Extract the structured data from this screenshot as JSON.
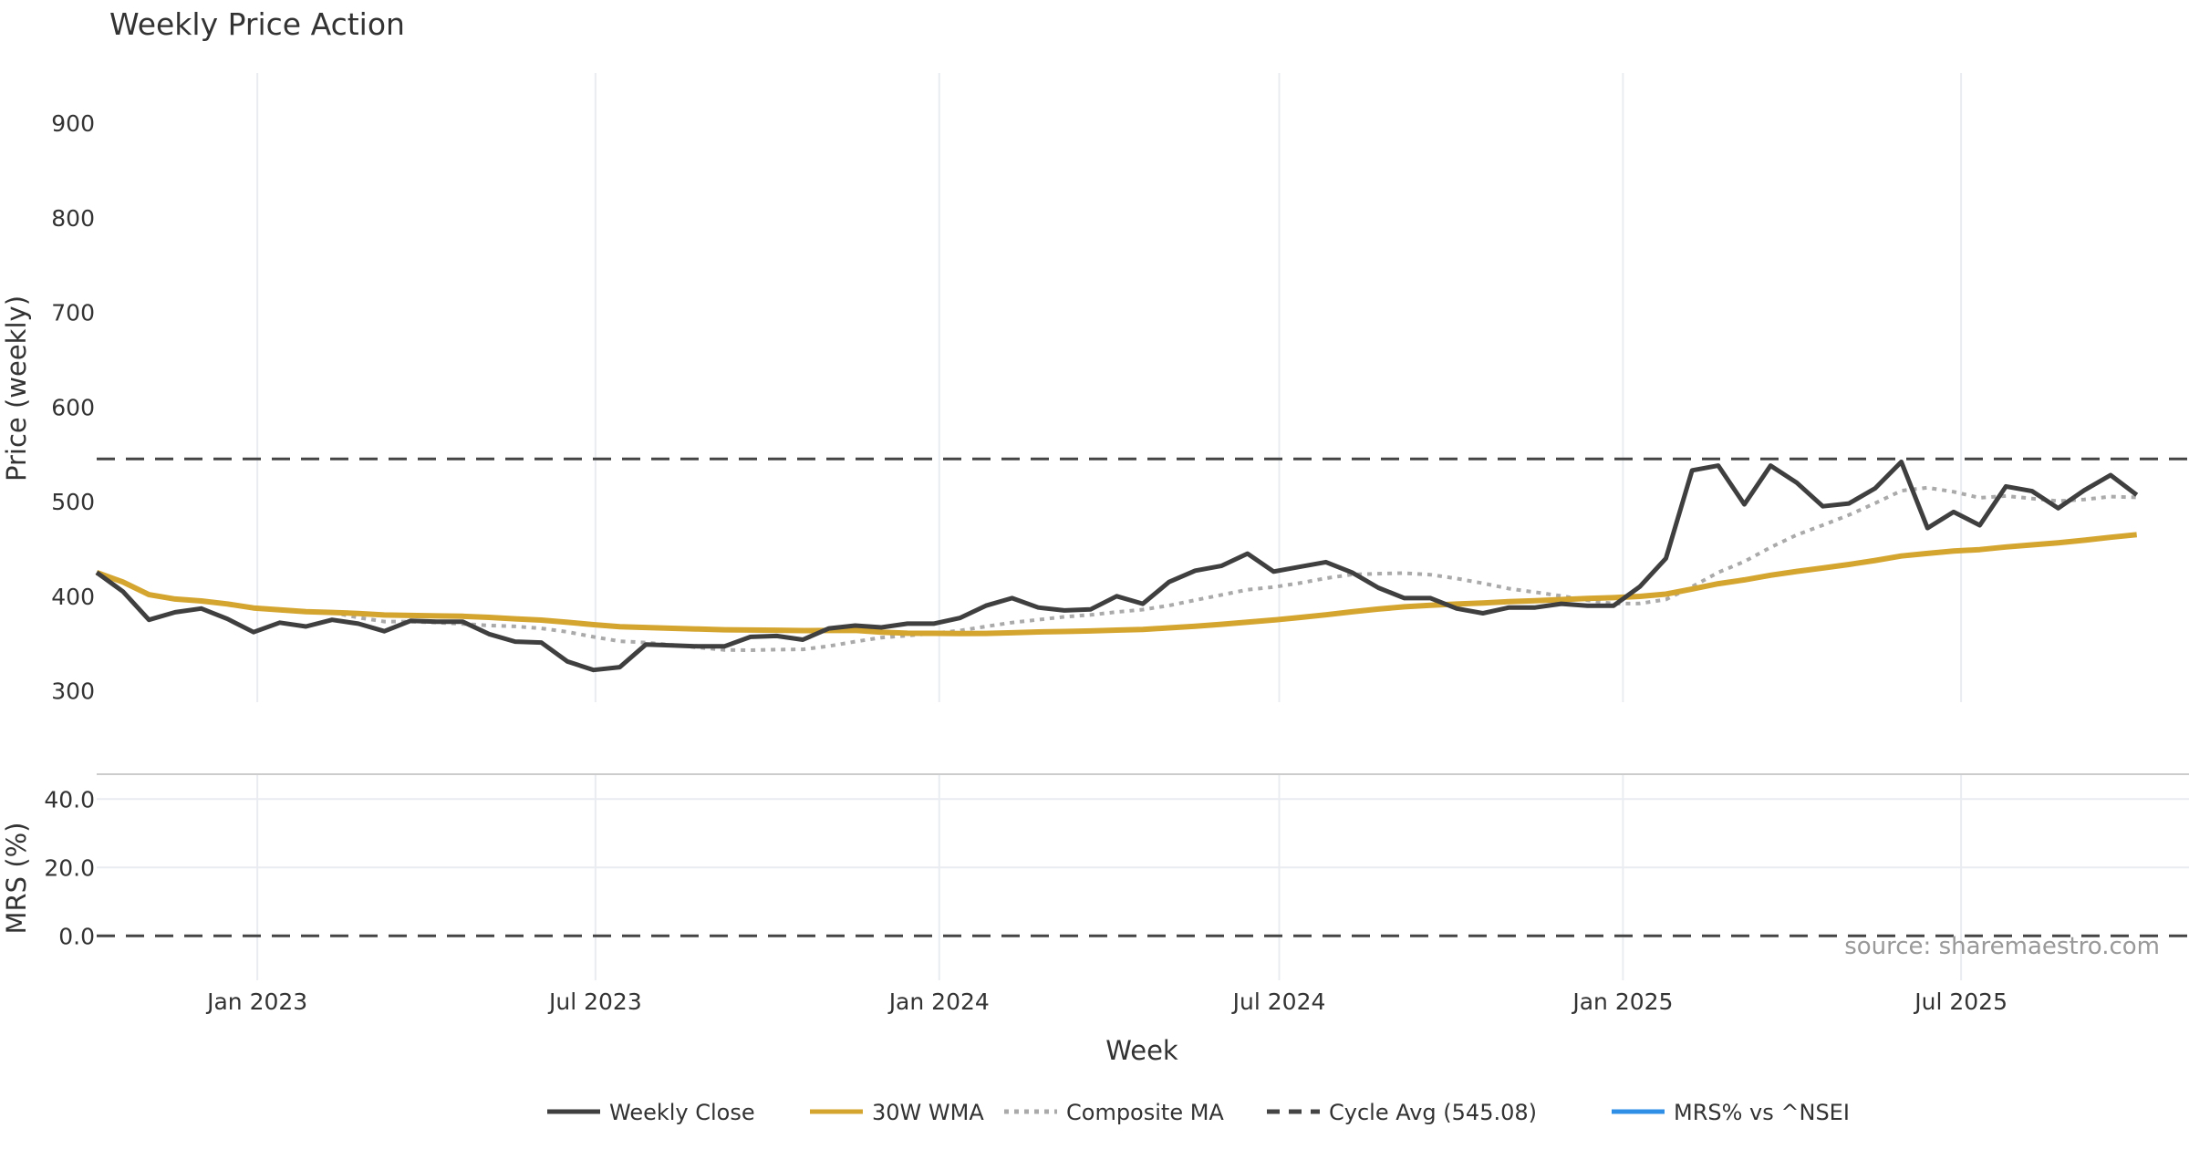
{
  "chart_data": [
    {
      "type": "line",
      "title": "Weekly Price Action",
      "xlabel": "",
      "ylabel": "Price (weekly)",
      "ylim": [
        288,
        953
      ],
      "xlim": [
        "2022-10-07",
        "2025-10-31"
      ],
      "grid": "vertical at x ticks",
      "yticks": [
        300,
        400,
        500,
        600,
        700,
        800,
        900
      ],
      "x_tick_dates": [
        "2023-01-01",
        "2023-07-01",
        "2024-01-01",
        "2024-07-01",
        "2025-01-01",
        "2025-07-01"
      ],
      "x_tick_labels": [
        "Jan 2023",
        "Jul 2023",
        "Jan 2024",
        "Jul 2024",
        "Jan 2025",
        "Jul 2025"
      ],
      "colors": {
        "close": "#3f3f3f",
        "wma": "#d4a52f",
        "composite": "#aaaaaa",
        "cycle": "#444444",
        "buy": "#1a9e1a",
        "sell": "#cc1111",
        "grid": "#e9ecf1",
        "ticks": "#333333"
      },
      "series": [
        {
          "name": "Weekly Close",
          "points": [
            [
              "2022-10-07",
              425
            ],
            [
              "2022-10-21",
              405
            ],
            [
              "2022-11-04",
              375
            ],
            [
              "2022-11-18",
              383
            ],
            [
              "2022-12-02",
              387
            ],
            [
              "2022-12-16",
              376
            ],
            [
              "2022-12-30",
              362
            ],
            [
              "2023-01-13",
              372
            ],
            [
              "2023-01-27",
              368
            ],
            [
              "2023-02-10",
              375
            ],
            [
              "2023-02-24",
              371
            ],
            [
              "2023-03-10",
              363
            ],
            [
              "2023-03-24",
              374
            ],
            [
              "2023-04-07",
              373
            ],
            [
              "2023-04-21",
              373
            ],
            [
              "2023-05-05",
              360
            ],
            [
              "2023-05-19",
              352
            ],
            [
              "2023-06-02",
              351
            ],
            [
              "2023-06-16",
              331
            ],
            [
              "2023-06-30",
              322
            ],
            [
              "2023-07-14",
              325
            ],
            [
              "2023-07-28",
              349
            ],
            [
              "2023-08-11",
              348
            ],
            [
              "2023-08-25",
              347
            ],
            [
              "2023-09-08",
              347
            ],
            [
              "2023-09-22",
              357
            ],
            [
              "2023-10-06",
              358
            ],
            [
              "2023-10-20",
              354
            ],
            [
              "2023-11-03",
              366
            ],
            [
              "2023-11-17",
              369
            ],
            [
              "2023-12-01",
              367
            ],
            [
              "2023-12-15",
              371
            ],
            [
              "2023-12-29",
              371
            ],
            [
              "2024-01-12",
              377
            ],
            [
              "2024-01-26",
              390
            ],
            [
              "2024-02-09",
              398
            ],
            [
              "2024-02-23",
              388
            ],
            [
              "2024-03-08",
              385
            ],
            [
              "2024-03-22",
              386
            ],
            [
              "2024-04-05",
              400
            ],
            [
              "2024-04-19",
              392
            ],
            [
              "2024-05-03",
              415
            ],
            [
              "2024-05-17",
              427
            ],
            [
              "2024-05-31",
              432
            ],
            [
              "2024-06-14",
              445
            ],
            [
              "2024-06-28",
              426
            ],
            [
              "2024-07-12",
              431
            ],
            [
              "2024-07-26",
              436
            ],
            [
              "2024-08-09",
              425
            ],
            [
              "2024-08-23",
              409
            ],
            [
              "2024-09-06",
              398
            ],
            [
              "2024-09-20",
              398
            ],
            [
              "2024-10-04",
              387
            ],
            [
              "2024-10-18",
              382
            ],
            [
              "2024-11-01",
              388
            ],
            [
              "2024-11-15",
              388
            ],
            [
              "2024-11-29",
              392
            ],
            [
              "2024-12-13",
              390
            ],
            [
              "2024-12-27",
              390
            ],
            [
              "2025-01-10",
              410
            ],
            [
              "2025-01-24",
              440
            ],
            [
              "2025-02-07",
              533
            ],
            [
              "2025-02-21",
              538
            ],
            [
              "2025-03-07",
              497
            ],
            [
              "2025-03-21",
              538
            ],
            [
              "2025-04-04",
              520
            ],
            [
              "2025-04-18",
              495
            ],
            [
              "2025-05-02",
              498
            ],
            [
              "2025-05-16",
              514
            ],
            [
              "2025-05-30",
              542
            ],
            [
              "2025-06-13",
              472
            ],
            [
              "2025-06-27",
              489
            ],
            [
              "2025-07-11",
              475
            ],
            [
              "2025-07-25",
              516
            ],
            [
              "2025-08-08",
              511
            ],
            [
              "2025-08-22",
              493
            ],
            [
              "2025-09-05",
              512
            ],
            [
              "2025-09-19",
              528
            ],
            [
              "2025-10-03",
              507
            ]
          ]
        }
      ]
    },
    {
      "type": "line",
      "title": "",
      "xlabel": "Week",
      "ylabel": "MRS (%)",
      "ylim": [
        -13,
        47
      ],
      "yticks": [
        0,
        20,
        40
      ],
      "ytick_labels": [
        "0.0",
        "20.0",
        "40.0"
      ],
      "x_tick_labels": [
        "Jan 2023",
        "Jul 2023",
        "Jan 2024",
        "Jul 2024",
        "Jan 2025",
        "Jul 2025"
      ],
      "zero_line": true,
      "colors": {
        "mrs": "#2f8fe6",
        "zero": "#444444"
      },
      "series": [
        {
          "name": "MRS% vs ^NSEI",
          "points": []
        }
      ]
    }
  ],
  "legend": {
    "placement": "bottom-center",
    "entries": [
      {
        "label": "Weekly Close",
        "style": "solid",
        "color": "#3f3f3f"
      },
      {
        "label": "30W WMA",
        "style": "solid",
        "color": "#d4a52f"
      },
      {
        "label": "Composite MA",
        "style": "dotted",
        "color": "#aaaaaa"
      },
      {
        "label": "Cycle Avg (545.08)",
        "style": "dashed",
        "color": "#444444"
      },
      {
        "label": "MRS% vs ^NSEI",
        "style": "solid",
        "color": "#2f8fe6"
      }
    ]
  },
  "watermark": "source: sharemaestro.com"
}
